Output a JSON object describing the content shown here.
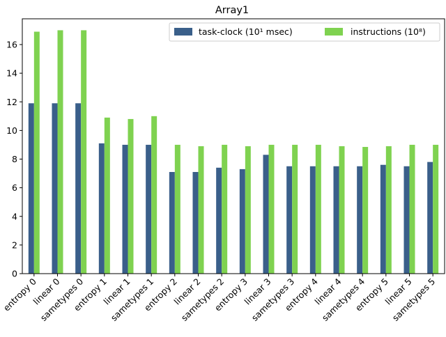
{
  "chart_data": {
    "type": "bar",
    "title": "Array1",
    "xlabel": "",
    "ylabel": "",
    "ylim": [
      0,
      17.8
    ],
    "yticks": [
      0,
      2,
      4,
      6,
      8,
      10,
      12,
      14,
      16
    ],
    "grid": false,
    "legend_position": "top-right",
    "categories": [
      "entropy 0",
      "linear 0",
      "sametypes 0",
      "entropy 1",
      "linear 1",
      "sametypes 1",
      "entropy 2",
      "linear 2",
      "sametypes 2",
      "entropy 3",
      "linear 3",
      "sametypes 3",
      "entropy 4",
      "linear 4",
      "sametypes 4",
      "entropy 5",
      "linear 5",
      "sametypes 5"
    ],
    "series": [
      {
        "name": "task-clock (10¹ msec)",
        "color": "#3a5f8a",
        "values": [
          11.9,
          11.9,
          11.9,
          9.1,
          9.0,
          9.0,
          7.1,
          7.1,
          7.4,
          7.3,
          8.3,
          7.5,
          7.5,
          7.5,
          7.5,
          7.6,
          7.5,
          7.8
        ]
      },
      {
        "name": "instructions (10⁸)",
        "color": "#7fd250",
        "values": [
          16.9,
          17.0,
          17.0,
          10.9,
          10.8,
          11.0,
          9.0,
          8.9,
          9.0,
          8.9,
          9.0,
          9.0,
          9.0,
          8.9,
          8.85,
          8.9,
          9.0,
          9.0
        ]
      }
    ]
  }
}
